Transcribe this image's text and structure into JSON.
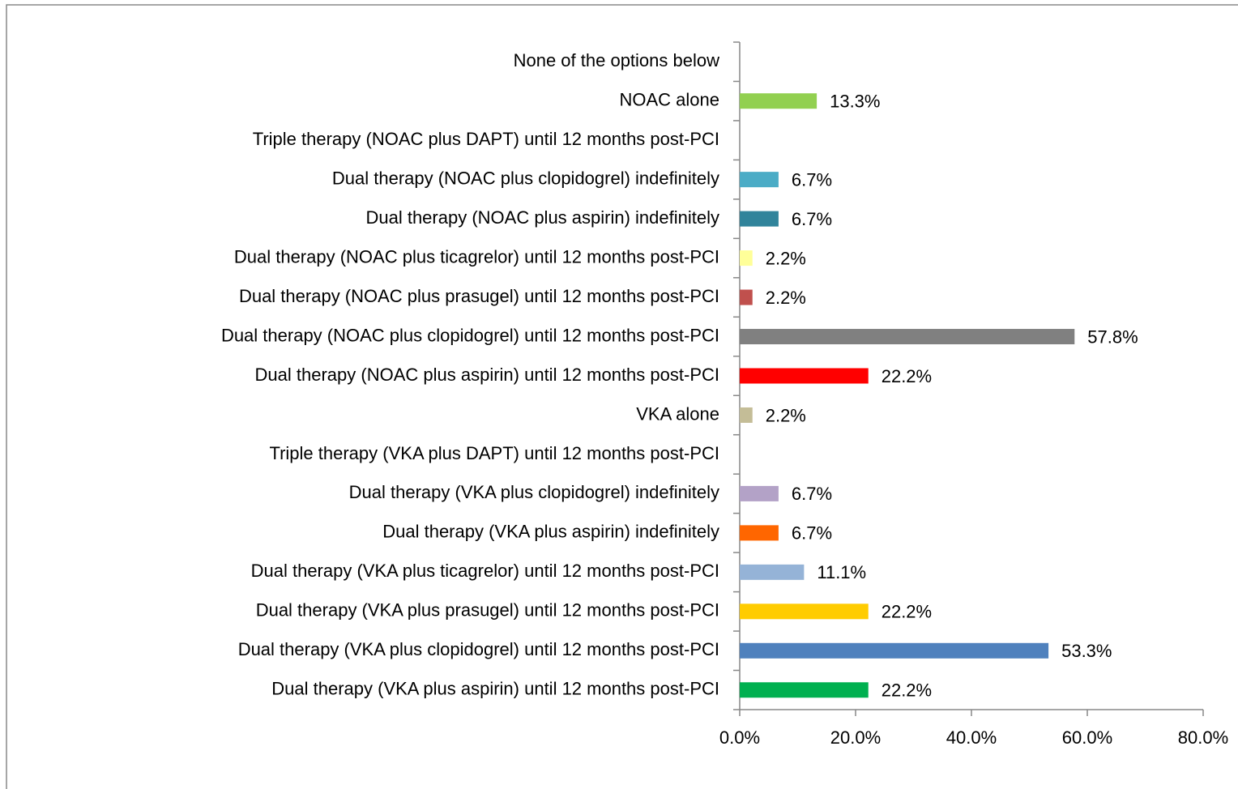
{
  "chart_data": {
    "type": "barh",
    "categories": [
      "Dual therapy (VKA plus aspirin) until 12 months post-PCI",
      "Dual therapy (VKA plus clopidogrel) until 12 months post-PCI",
      "Dual therapy (VKA plus prasugel) until 12 months post-PCI",
      "Dual therapy (VKA plus ticagrelor) until 12 months post-PCI",
      "Dual therapy (VKA plus aspirin) indefinitely",
      "Dual therapy (VKA plus clopidogrel) indefinitely",
      "Triple therapy (VKA plus DAPT) until 12 months post-PCI",
      "VKA alone",
      "Dual therapy (NOAC plus aspirin) until 12 months post-PCI",
      "Dual therapy (NOAC plus clopidogrel) until 12 months post-PCI",
      "Dual therapy (NOAC plus prasugel) until 12 months post-PCI",
      "Dual therapy (NOAC plus ticagrelor) until 12 months post-PCI",
      "Dual therapy (NOAC plus aspirin) indefinitely",
      "Dual therapy (NOAC plus clopidogrel) indefinitely",
      "Triple therapy (NOAC plus DAPT) until 12 months post-PCI",
      "NOAC alone",
      "None of the options below"
    ],
    "values": [
      22.2,
      53.3,
      22.2,
      11.1,
      6.7,
      6.7,
      null,
      2.2,
      22.2,
      57.8,
      2.2,
      2.2,
      6.7,
      6.7,
      null,
      13.3,
      null
    ],
    "value_labels": [
      "22.2%",
      "53.3%",
      "22.2%",
      "11.1%",
      "6.7%",
      "6.7%",
      null,
      "2.2%",
      "22.2%",
      "57.8%",
      "2.2%",
      "2.2%",
      "6.7%",
      "6.7%",
      null,
      "13.3%",
      null
    ],
    "colors": [
      "#00b050",
      "#4f81bd",
      "#ffcc00",
      "#95b3d7",
      "#ff6600",
      "#b3a2c7",
      null,
      "#c4bd97",
      "#ff0000",
      "#808080",
      "#c0504d",
      "#ffff99",
      "#31849b",
      "#4bacc6",
      null,
      "#92d050",
      null
    ],
    "xlim": [
      0,
      80
    ],
    "xticks": [
      {
        "value": 0,
        "label": "0.0%"
      },
      {
        "value": 20,
        "label": "20.0%"
      },
      {
        "value": 40,
        "label": "40.0%"
      },
      {
        "value": 60,
        "label": "60.0%"
      },
      {
        "value": 80,
        "label": "80.0%"
      }
    ]
  }
}
